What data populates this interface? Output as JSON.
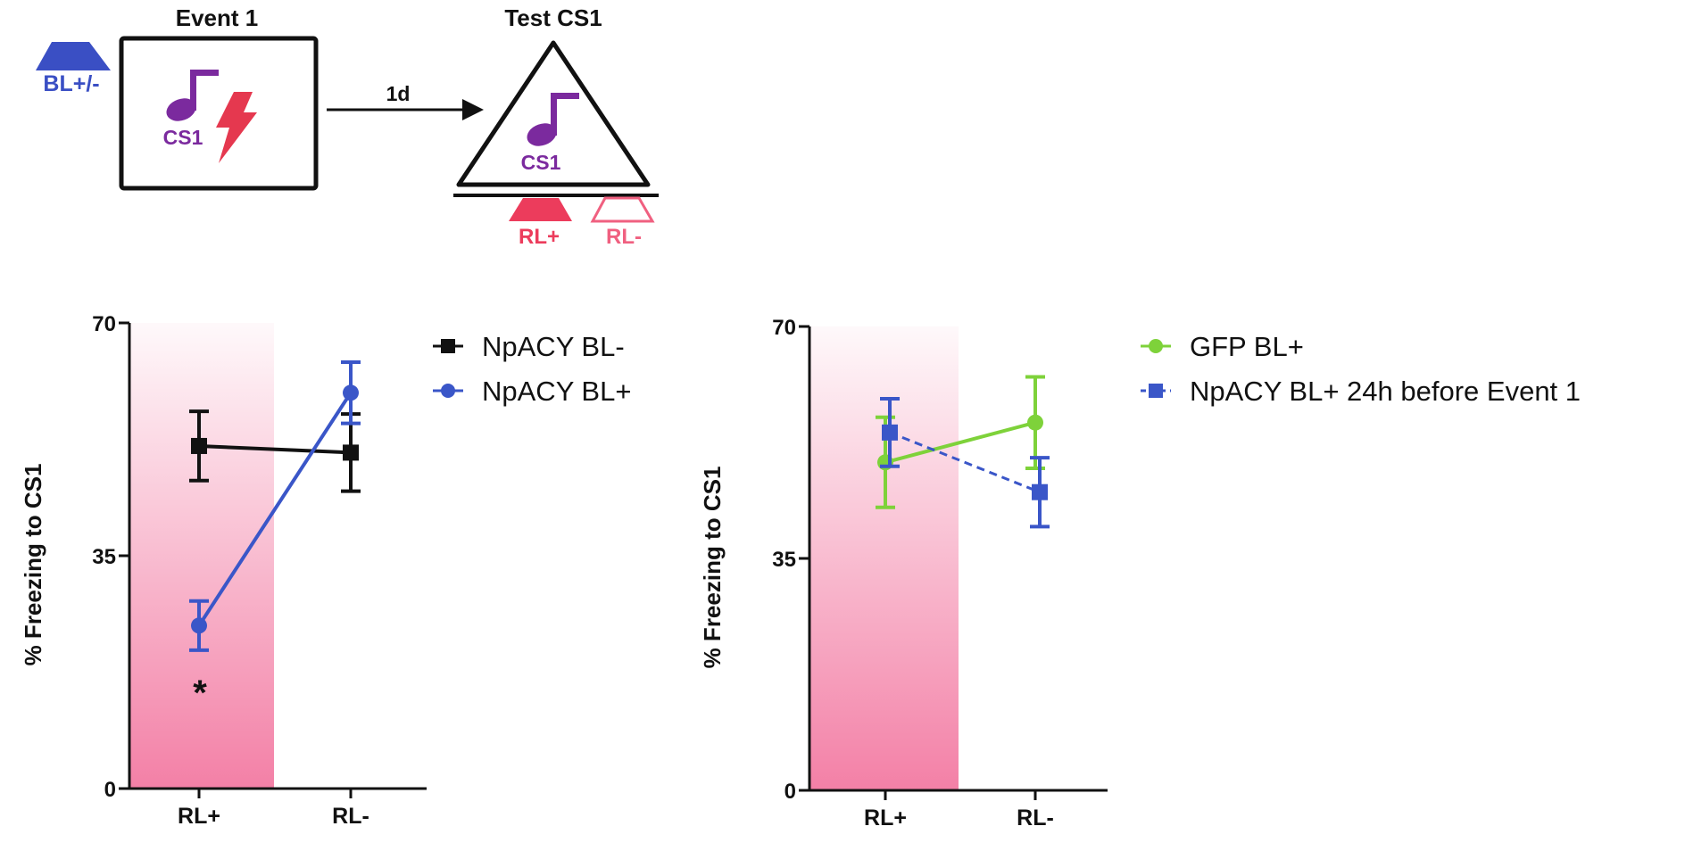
{
  "schematic": {
    "event_title": "Event 1",
    "test_title": "Test CS1",
    "bl_label": "BL+/-",
    "cs_label_event": "CS1",
    "cs_label_test": "CS1",
    "delay_label": "1d",
    "rl_plus_label": "RL+",
    "rl_minus_label": "RL-",
    "colors": {
      "blue": "#3a4fc4",
      "purple": "#7b2a9e",
      "red": "#e5384f",
      "pink": "#f06080"
    }
  },
  "chart_data": [
    {
      "type": "line",
      "ylabel": "% Freezing to CS1",
      "xlabel": "",
      "categories": [
        "RL+",
        "RL-"
      ],
      "ylim": [
        0,
        70
      ],
      "yticks": [
        0,
        35,
        70
      ],
      "shaded_category": "RL+",
      "shade_color": "#f06090",
      "legend_position": "top-right",
      "series": [
        {
          "name": "NpACY BL-",
          "values": [
            51.5,
            50.5
          ],
          "errors": [
            5.2,
            5.8
          ],
          "color": "#111111",
          "marker": "square",
          "dash": false
        },
        {
          "name": "NpACY BL+",
          "values": [
            24.5,
            59.5
          ],
          "errors": [
            3.7,
            4.6
          ],
          "color": "#3a56c8",
          "marker": "circle",
          "dash": false
        }
      ],
      "annotations": [
        {
          "category": "RL+",
          "text": "*"
        }
      ]
    },
    {
      "type": "line",
      "ylabel": "% Freezing to CS1",
      "xlabel": "",
      "categories": [
        "RL+",
        "RL-"
      ],
      "ylim": [
        0,
        70
      ],
      "yticks": [
        0,
        35,
        70
      ],
      "shaded_category": "RL+",
      "shade_color": "#f06090",
      "legend_position": "top-right",
      "series": [
        {
          "name": "GFP BL+",
          "values": [
            49.5,
            55.5
          ],
          "errors": [
            6.8,
            6.9
          ],
          "color": "#7ed23a",
          "marker": "circle",
          "dash": false
        },
        {
          "name": "NpACY BL+ 24h before Event 1",
          "values": [
            54,
            45
          ],
          "errors": [
            5.1,
            5.2
          ],
          "color": "#3a56c8",
          "marker": "square",
          "dash": true
        }
      ],
      "annotations": []
    }
  ]
}
